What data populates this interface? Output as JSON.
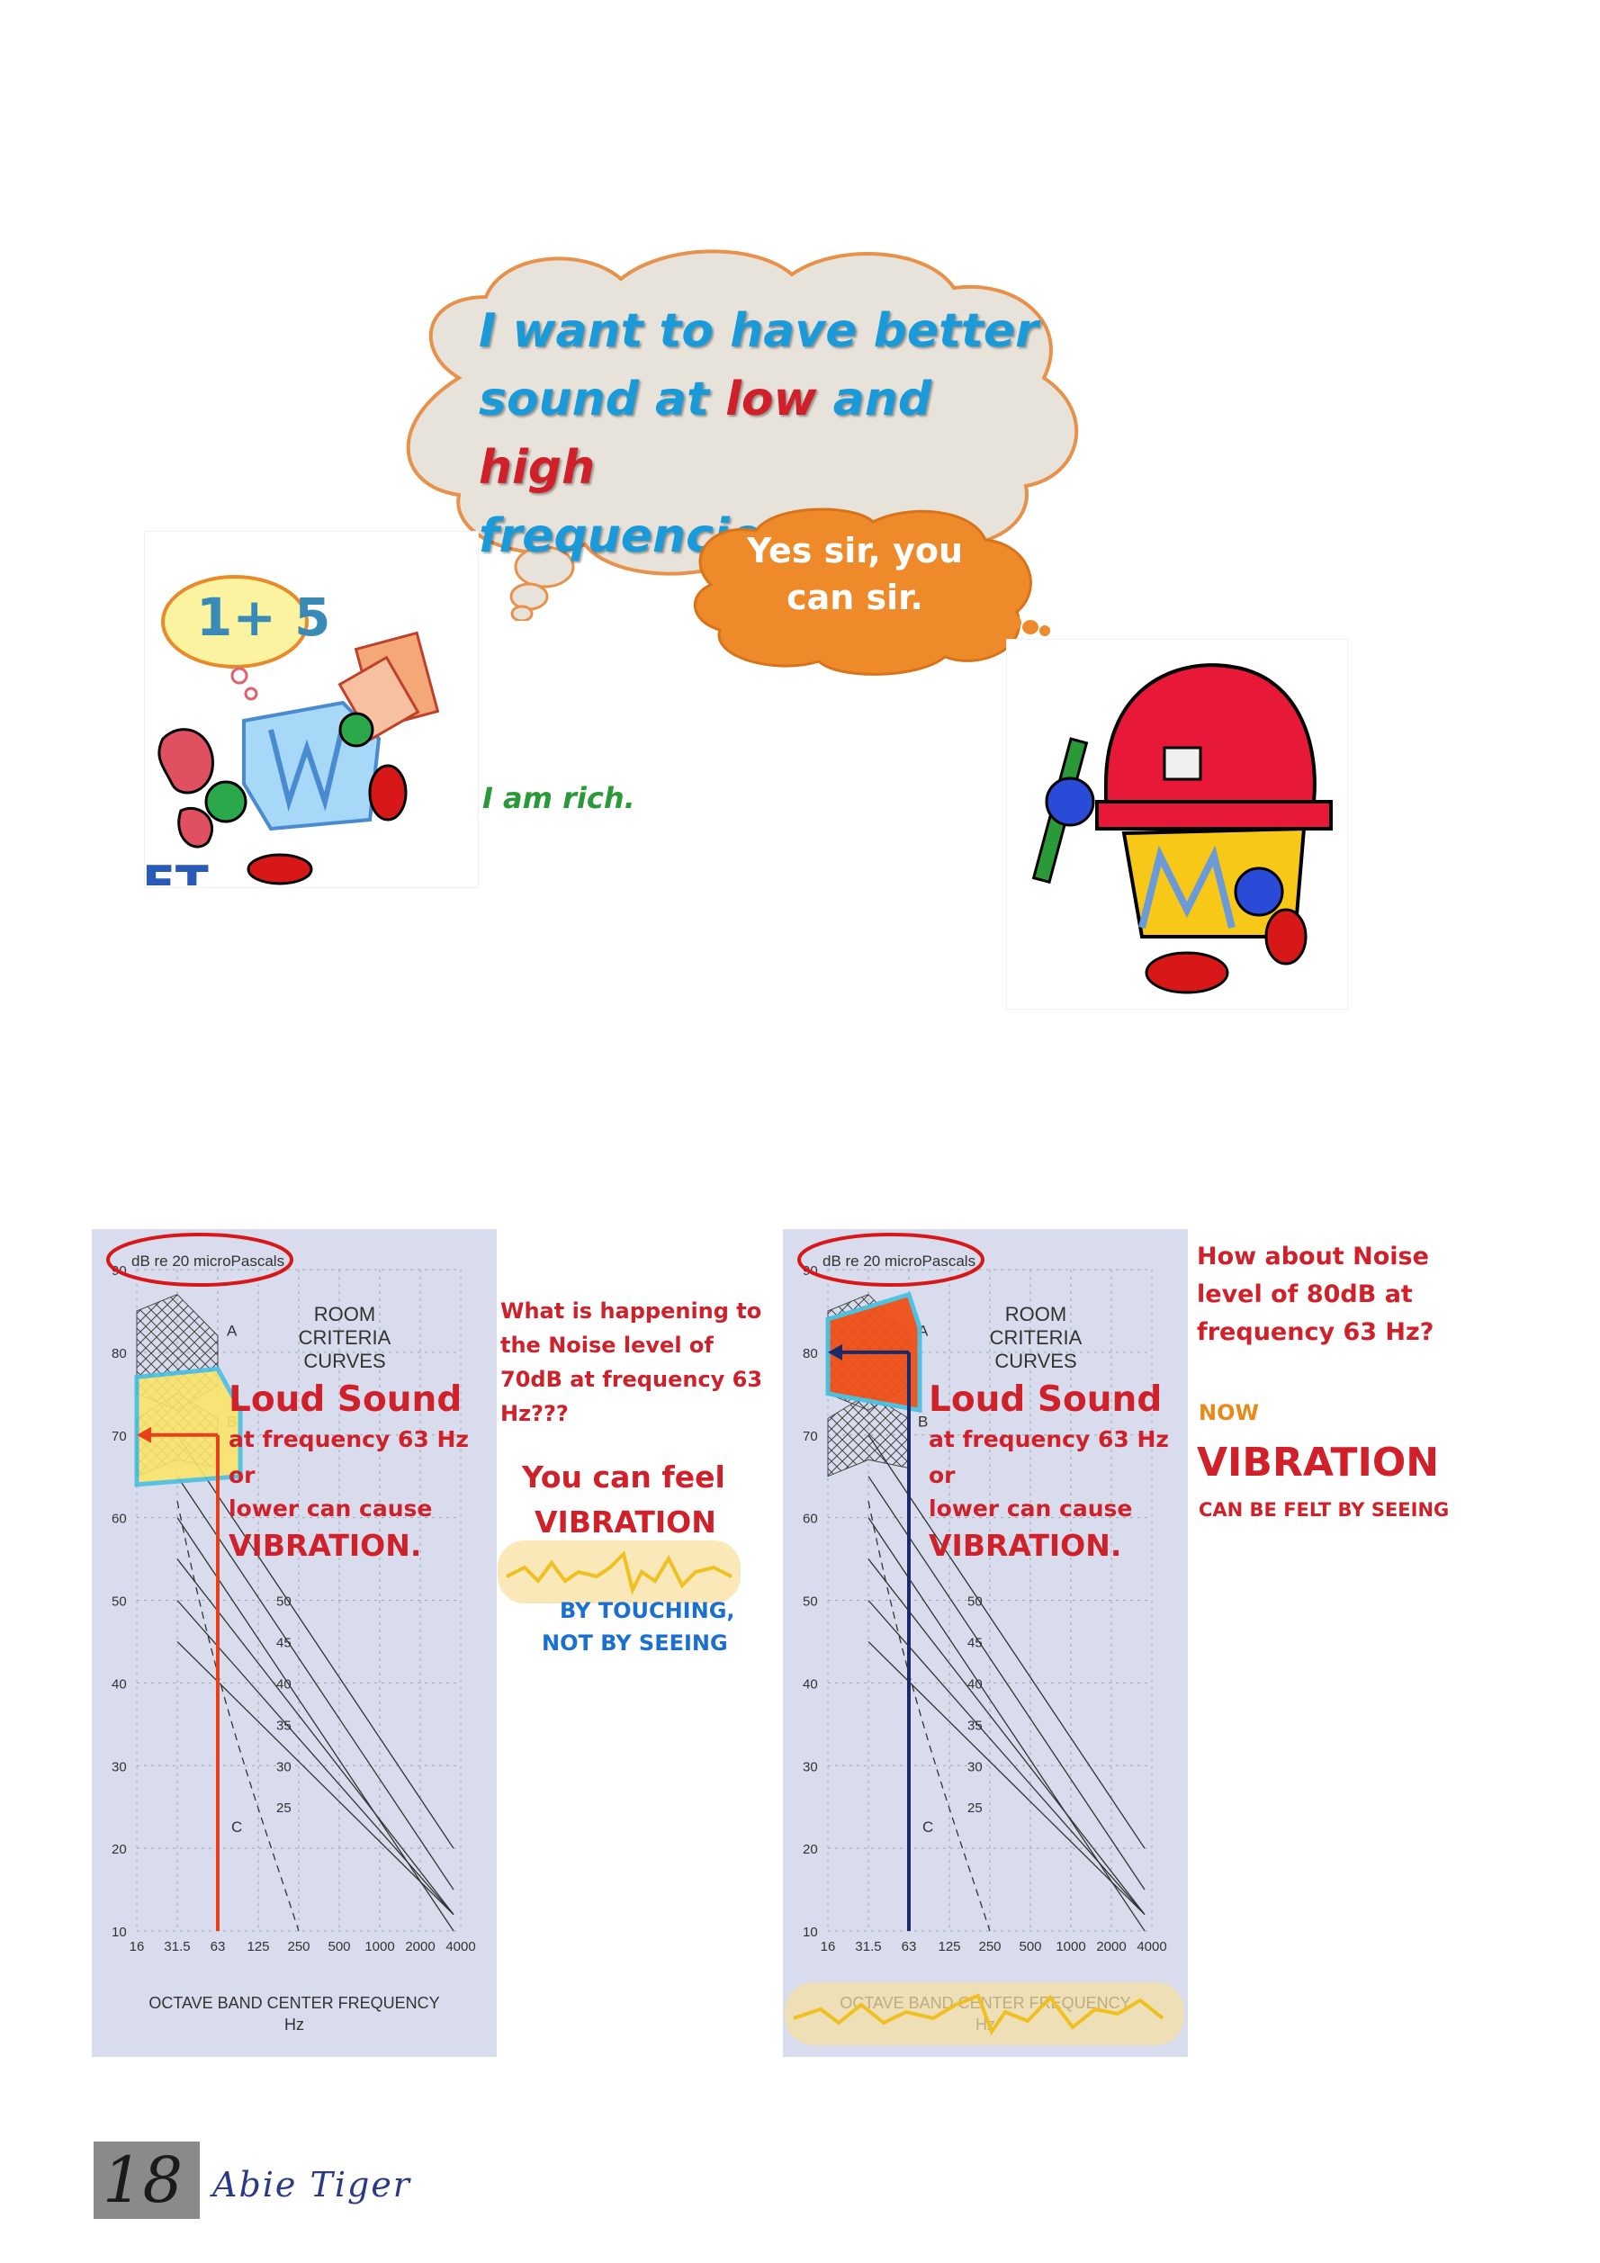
{
  "cloud": {
    "line1": "I want to have  better",
    "line2_pre": "sound at ",
    "line2_low": "low",
    "line2_mid": " and ",
    "line2_high": "high",
    "line3": "frequencies."
  },
  "reply_bubble": {
    "line1": "Yes sir, you",
    "line2": "can sir."
  },
  "left_character": {
    "thought_text": "1+ 5",
    "speech": "I am rich.",
    "partial_text": "FT"
  },
  "chart_common": {
    "unit_label": "dB re 20 microPascals",
    "title_line1": "ROOM CRITERIA",
    "title_line2": "CURVES",
    "xlabel_line1": "OCTAVE BAND CENTER FREQUENCY",
    "xlabel_line2": "Hz",
    "region_labels": [
      "A",
      "B",
      "C"
    ]
  },
  "chart_data": [
    {
      "type": "line",
      "xlabel": "OCTAVE BAND CENTER FREQUENCY Hz",
      "ylabel": "dB re 20 microPascals",
      "x_categories": [
        "16",
        "31.5",
        "63",
        "125",
        "250",
        "500",
        "1000",
        "2000",
        "4000"
      ],
      "ylim": [
        10,
        90
      ],
      "y_ticks": [
        10,
        20,
        30,
        40,
        50,
        60,
        70,
        80,
        90
      ],
      "curve_labels": [
        "50",
        "45",
        "40",
        "35",
        "30",
        "25"
      ],
      "highlight": {
        "frequency_hz": 63,
        "level_db": 70,
        "color": "#e8401c"
      }
    },
    {
      "type": "line",
      "xlabel": "OCTAVE BAND CENTER FREQUENCY Hz",
      "ylabel": "dB re 20 microPascals",
      "x_categories": [
        "16",
        "31.5",
        "63",
        "125",
        "250",
        "500",
        "1000",
        "2000",
        "4000"
      ],
      "ylim": [
        10,
        90
      ],
      "y_ticks": [
        10,
        20,
        30,
        40,
        50,
        60,
        70,
        80,
        90
      ],
      "curve_labels": [
        "50",
        "45",
        "40",
        "35",
        "30",
        "25"
      ],
      "highlight": {
        "frequency_hz": 63,
        "level_db": 80,
        "color": "#1a2a6a"
      }
    }
  ],
  "chart1_callout": {
    "loud": "Loud Sound",
    "line1": "at frequency 63 Hz or",
    "line2": "lower can cause",
    "vibration": "VIBRATION."
  },
  "chart2_callout": {
    "loud": "Loud Sound",
    "line1": "at frequency 63 Hz or",
    "line2": "lower can cause",
    "vibration": "VIBRATION."
  },
  "middle_text": {
    "q1": "What is happening to",
    "q2": "the Noise  level of",
    "q3": "70dB at frequency 63",
    "q4": "Hz???",
    "feel": "You can feel",
    "vibration": "VIBRATION",
    "touch": "BY TOUCHING,",
    "not_seeing": "NOT BY SEEING"
  },
  "right_text": {
    "q1": "How about Noise",
    "q2": "level of 80dB at",
    "q3": "frequency 63 Hz?",
    "now": "NOW",
    "vibration": "VIBRATION",
    "felt": "CAN BE FELT BY SEEING"
  },
  "footer": {
    "page_number": "18",
    "author": "Abie Tiger"
  }
}
